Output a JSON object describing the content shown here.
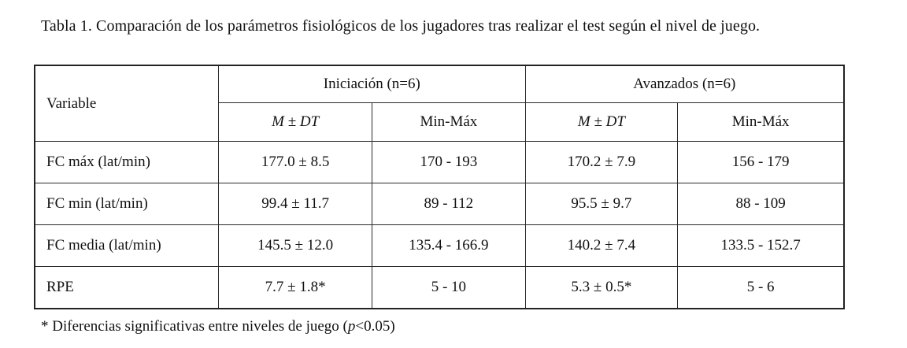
{
  "caption": "Tabla 1. Comparación de los parámetros fisiológicos de los jugadores tras realizar el test según el nivel de juego.",
  "table": {
    "variable_header": "Variable",
    "groups": [
      {
        "label": "Iniciación (n=6)"
      },
      {
        "label": "Avanzados  (n=6)"
      }
    ],
    "subheaders": [
      "M ± DT",
      "Min-Máx",
      "M ± DT",
      "Min-Máx"
    ],
    "rows": [
      {
        "label": "FC máx (lat/min)",
        "cells": [
          "177.0 ± 8.5",
          "170 - 193",
          "170.2 ± 7.9",
          "156 - 179"
        ]
      },
      {
        "label": "FC min (lat/min)",
        "cells": [
          "99.4 ± 11.7",
          "89 - 112",
          "95.5 ± 9.7",
          "88 - 109"
        ]
      },
      {
        "label": "FC media (lat/min)",
        "cells": [
          "145.5 ± 12.0",
          "135.4 - 166.9",
          "140.2 ± 7.4",
          "133.5 - 152.7"
        ]
      },
      {
        "label": "RPE",
        "cells": [
          "7.7 ± 1.8*",
          "5 - 10",
          "5.3 ± 0.5*",
          "5 - 6"
        ]
      }
    ]
  },
  "footnote": {
    "prefix": "* Diferencias significativas entre niveles de juego (",
    "p_symbol": "p",
    "suffix": "<0.05)"
  }
}
